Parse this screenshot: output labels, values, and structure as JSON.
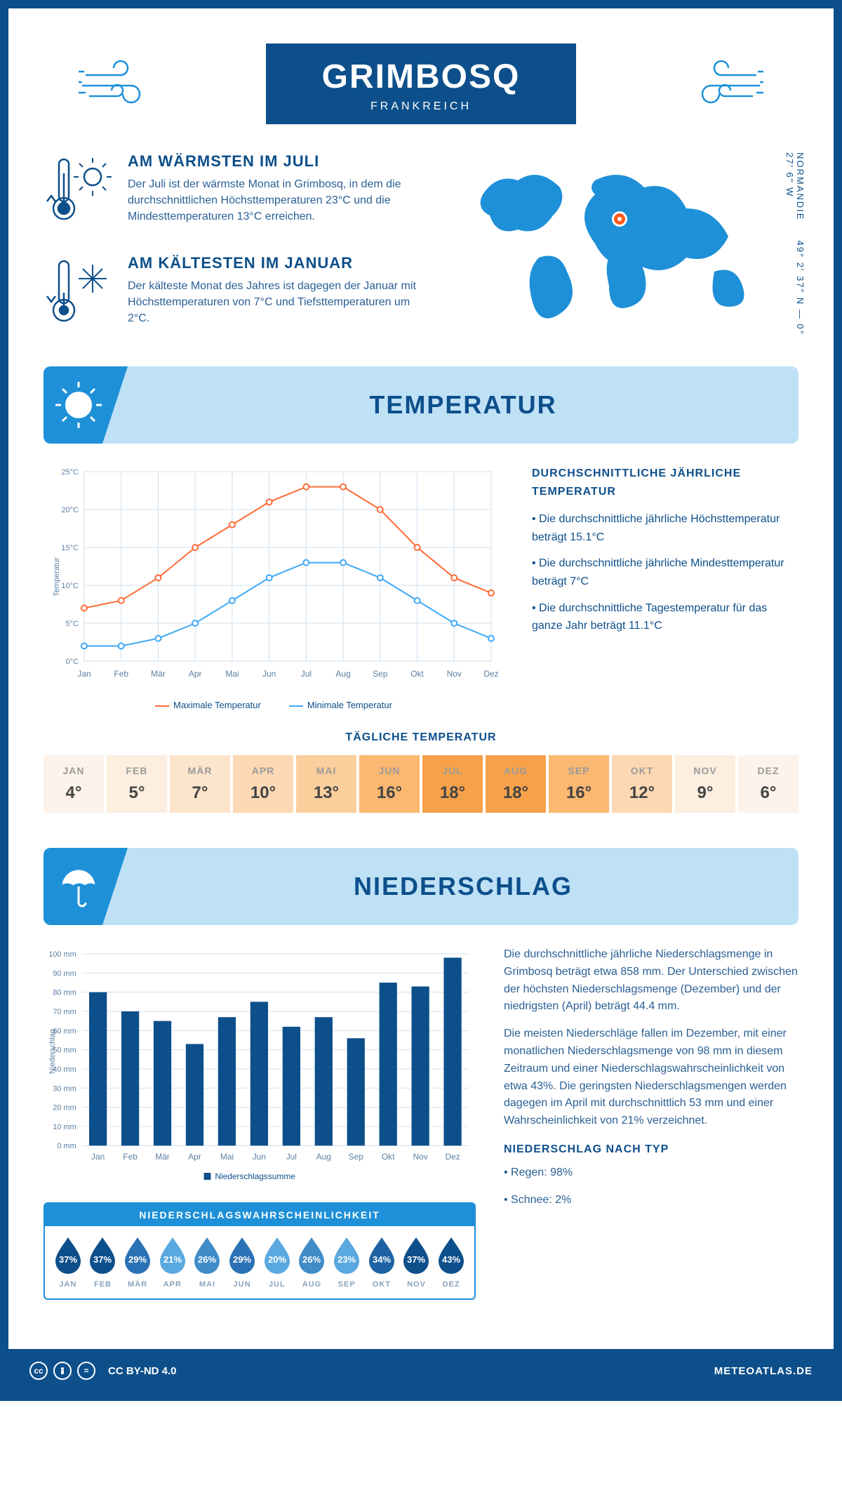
{
  "header": {
    "title": "GRIMBOSQ",
    "subtitle": "FRANKREICH"
  },
  "facts": {
    "warm": {
      "title": "AM WÄRMSTEN IM JULI",
      "text": "Der Juli ist der wärmste Monat in Grimbosq, in dem die durchschnittlichen Höchsttemperaturen 23°C und die Mindesttemperaturen 13°C erreichen."
    },
    "cold": {
      "title": "AM KÄLTESTEN IM JANUAR",
      "text": "Der kälteste Monat des Jahres ist dagegen der Januar mit Höchsttemperaturen von 7°C und Tiefsttemperaturen um 2°C."
    }
  },
  "map": {
    "coords": "49° 2' 37\" N — 0° 27' 6\" W",
    "region": "NORMANDIE",
    "marker_color": "#ff5a1f"
  },
  "temp_section": {
    "title": "TEMPERATUR"
  },
  "temp_chart": {
    "type": "line",
    "xlabels": [
      "Jan",
      "Feb",
      "Mär",
      "Apr",
      "Mai",
      "Jun",
      "Jul",
      "Aug",
      "Sep",
      "Okt",
      "Nov",
      "Dez"
    ],
    "ylabel": "Temperatur",
    "ylim": [
      0,
      25
    ],
    "ytick_step": 5,
    "series": [
      {
        "name": "Maximale Temperatur",
        "color": "#ff6b35",
        "values": [
          7,
          8,
          11,
          15,
          18,
          21,
          23,
          23,
          20,
          15,
          11,
          9
        ]
      },
      {
        "name": "Minimale Temperatur",
        "color": "#3fa9f5",
        "values": [
          2,
          2,
          3,
          5,
          8,
          11,
          13,
          13,
          11,
          8,
          5,
          3
        ]
      }
    ],
    "grid_color": "#d0e0ef",
    "background": "#ffffff",
    "line_width": 2,
    "marker": "circle",
    "marker_size": 4
  },
  "temp_text": {
    "heading": "DURCHSCHNITTLICHE JÄHRLICHE TEMPERATUR",
    "items": [
      "• Die durchschnittliche jährliche Höchsttemperatur beträgt 15.1°C",
      "• Die durchschnittliche jährliche Mindesttemperatur beträgt 7°C",
      "• Die durchschnittliche Tagestemperatur für das ganze Jahr beträgt 11.1°C"
    ]
  },
  "daily": {
    "heading": "TÄGLICHE TEMPERATUR",
    "months": [
      "JAN",
      "FEB",
      "MÄR",
      "APR",
      "MAI",
      "JUN",
      "JUL",
      "AUG",
      "SEP",
      "OKT",
      "NOV",
      "DEZ"
    ],
    "values": [
      "4°",
      "5°",
      "7°",
      "10°",
      "13°",
      "16°",
      "18°",
      "18°",
      "16°",
      "12°",
      "9°",
      "6°"
    ],
    "colors": [
      "#fdf3ea",
      "#fdeedf",
      "#fde5cc",
      "#fcd9b4",
      "#fbcf9c",
      "#fab871",
      "#f7a14a",
      "#f7a14a",
      "#fab871",
      "#fcd9b4",
      "#fdeedf",
      "#fdf3ea"
    ]
  },
  "precip_section": {
    "title": "NIEDERSCHLAG"
  },
  "precip_chart": {
    "type": "bar",
    "xlabels": [
      "Jan",
      "Feb",
      "Mär",
      "Apr",
      "Mai",
      "Jun",
      "Jul",
      "Aug",
      "Sep",
      "Okt",
      "Nov",
      "Dez"
    ],
    "ylabel": "Niederschlag",
    "ylim": [
      0,
      100
    ],
    "ytick_step": 10,
    "values": [
      80,
      70,
      65,
      53,
      67,
      75,
      62,
      67,
      56,
      85,
      83,
      98
    ],
    "bar_color": "#0d4f8b",
    "legend": "Niederschlagssumme",
    "grid_color": "#d0e0ef",
    "bar_width": 0.55
  },
  "precip_text": {
    "p1": "Die durchschnittliche jährliche Niederschlagsmenge in Grimbosq beträgt etwa 858 mm. Der Unterschied zwischen der höchsten Niederschlagsmenge (Dezember) und der niedrigsten (April) beträgt 44.4 mm.",
    "p2": "Die meisten Niederschläge fallen im Dezember, mit einer monatlichen Niederschlagsmenge von 98 mm in diesem Zeitraum und einer Niederschlagswahrscheinlichkeit von etwa 43%. Die geringsten Niederschlagsmengen werden dagegen im April mit durchschnittlich 53 mm und einer Wahrscheinlichkeit von 21% verzeichnet.",
    "type_heading": "NIEDERSCHLAG NACH TYP",
    "type_items": [
      "• Regen: 98%",
      "• Schnee: 2%"
    ]
  },
  "prob": {
    "title": "NIEDERSCHLAGSWAHRSCHEINLICHKEIT",
    "months": [
      "JAN",
      "FEB",
      "MÄR",
      "APR",
      "MAI",
      "JUN",
      "JUL",
      "AUG",
      "SEP",
      "OKT",
      "NOV",
      "DEZ"
    ],
    "values": [
      "37%",
      "37%",
      "29%",
      "21%",
      "26%",
      "29%",
      "20%",
      "26%",
      "23%",
      "34%",
      "37%",
      "43%"
    ],
    "colors": [
      "#0d4f8b",
      "#0d4f8b",
      "#2a72b5",
      "#5aa8e0",
      "#3f8cc9",
      "#2a72b5",
      "#5aa8e0",
      "#3f8cc9",
      "#5aa8e0",
      "#1e62a3",
      "#0d4f8b",
      "#0d4f8b"
    ]
  },
  "footer": {
    "license": "CC BY-ND 4.0",
    "site": "METEOATLAS.DE"
  }
}
